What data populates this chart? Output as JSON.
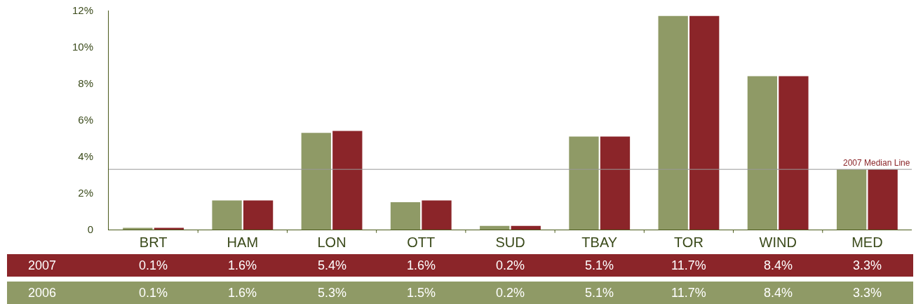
{
  "chart_data": {
    "type": "bar",
    "categories": [
      "BRT",
      "HAM",
      "LON",
      "OTT",
      "SUD",
      "TBAY",
      "TOR",
      "WIND",
      "MED"
    ],
    "series": [
      {
        "name": "2006",
        "color": "#8f9a66",
        "values": [
          0.1,
          1.6,
          5.3,
          1.5,
          0.2,
          5.1,
          11.7,
          8.4,
          3.3
        ],
        "value_labels": [
          "0.1%",
          "1.6%",
          "5.3%",
          "1.5%",
          "0.2%",
          "5.1%",
          "11.7%",
          "8.4%",
          "3.3%"
        ]
      },
      {
        "name": "2007",
        "color": "#8b2529",
        "values": [
          0.1,
          1.6,
          5.4,
          1.6,
          0.2,
          5.1,
          11.7,
          8.4,
          3.3
        ],
        "value_labels": [
          "0.1%",
          "1.6%",
          "5.4%",
          "1.6%",
          "0.2%",
          "5.1%",
          "11.7%",
          "8.4%",
          "3.3%"
        ]
      }
    ],
    "ylim": [
      0,
      12
    ],
    "yticks": [
      0,
      {
        "value": 2,
        "label": "2%"
      },
      {
        "value": 4,
        "label": "4%"
      },
      {
        "value": 6,
        "label": "6%"
      },
      {
        "value": 8,
        "label": "8%"
      },
      {
        "value": 10,
        "label": "10%"
      },
      {
        "value": 12,
        "label": "12%"
      }
    ],
    "ref_lines": [
      {
        "axis": "y",
        "value": 3.3,
        "label": "2007 Median Line",
        "color": "#999999"
      }
    ],
    "grid": false,
    "legend": false
  }
}
